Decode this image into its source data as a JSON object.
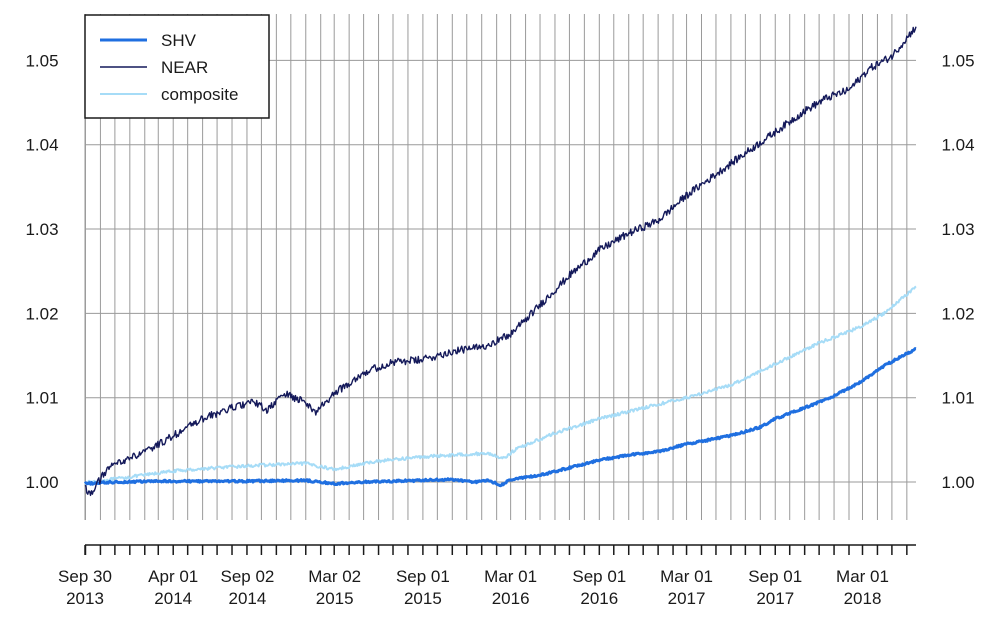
{
  "chart_data": {
    "type": "line",
    "title": "",
    "xlabel": "",
    "ylabel": "",
    "x_range": [
      "2013-09-30",
      "2018-06-20"
    ],
    "ylim": [
      0.9955,
      1.0555
    ],
    "y_ticks": [
      1.0,
      1.01,
      1.02,
      1.03,
      1.04,
      1.05
    ],
    "y_tick_labels": [
      "1.00",
      "1.01",
      "1.02",
      "1.03",
      "1.04",
      "1.05"
    ],
    "y_axis_sides": "both",
    "x_tick_labels": [
      {
        "date": "2013-09-30",
        "line1": "Sep 30",
        "line2": "2013"
      },
      {
        "date": "2014-04-01",
        "line1": "Apr 01",
        "line2": "2014"
      },
      {
        "date": "2014-09-02",
        "line1": "Sep 02",
        "line2": "2014"
      },
      {
        "date": "2015-03-02",
        "line1": "Mar 02",
        "line2": "2015"
      },
      {
        "date": "2015-09-01",
        "line1": "Sep 01",
        "line2": "2015"
      },
      {
        "date": "2016-03-01",
        "line1": "Mar 01",
        "line2": "2016"
      },
      {
        "date": "2016-09-01",
        "line1": "Sep 01",
        "line2": "2016"
      },
      {
        "date": "2017-03-01",
        "line1": "Mar 01",
        "line2": "2017"
      },
      {
        "date": "2017-09-01",
        "line1": "Sep 01",
        "line2": "2017"
      },
      {
        "date": "2018-03-01",
        "line1": "Mar 01",
        "line2": "2018"
      }
    ],
    "grid": true,
    "grid_vertical": "monthly",
    "legend": {
      "placement": "top-left",
      "entries": [
        {
          "name": "SHV",
          "color": "#1f6fe0"
        },
        {
          "name": "NEAR",
          "color": "#14195a"
        },
        {
          "name": "composite",
          "color": "#a6dcf7"
        }
      ]
    },
    "series": [
      {
        "name": "SHV",
        "color": "#1f6fe0",
        "line_width": 3,
        "points": [
          [
            "2013-09-30",
            0.9998
          ],
          [
            "2013-12-01",
            1.0
          ],
          [
            "2014-03-01",
            1.0001
          ],
          [
            "2014-06-01",
            1.0001
          ],
          [
            "2014-09-01",
            1.0001
          ],
          [
            "2015-01-01",
            1.0002
          ],
          [
            "2015-03-01",
            0.9998
          ],
          [
            "2015-05-01",
            1.0
          ],
          [
            "2015-09-01",
            1.0002
          ],
          [
            "2015-11-01",
            1.0003
          ],
          [
            "2015-12-15",
            1.0
          ],
          [
            "2016-01-15",
            1.0002
          ],
          [
            "2016-02-10",
            0.9996
          ],
          [
            "2016-03-01",
            1.0003
          ],
          [
            "2016-05-01",
            1.0008
          ],
          [
            "2016-07-01",
            1.0017
          ],
          [
            "2016-09-01",
            1.0026
          ],
          [
            "2016-11-01",
            1.0032
          ],
          [
            "2017-01-01",
            1.0036
          ],
          [
            "2017-03-01",
            1.0045
          ],
          [
            "2017-04-15",
            1.005
          ],
          [
            "2017-06-01",
            1.0055
          ],
          [
            "2017-08-01",
            1.0065
          ],
          [
            "2017-09-01",
            1.0075
          ],
          [
            "2017-11-01",
            1.0088
          ],
          [
            "2018-01-01",
            1.0102
          ],
          [
            "2018-03-01",
            1.012
          ],
          [
            "2018-04-15",
            1.0138
          ],
          [
            "2018-06-20",
            1.0158
          ]
        ]
      },
      {
        "name": "NEAR",
        "color": "#14195a",
        "line_width": 1.4,
        "points": [
          [
            "2013-09-30",
            0.9995
          ],
          [
            "2013-10-10",
            0.9985
          ],
          [
            "2013-11-15",
            1.0015
          ],
          [
            "2013-12-15",
            1.0025
          ],
          [
            "2014-02-01",
            1.0035
          ],
          [
            "2014-04-01",
            1.0055
          ],
          [
            "2014-06-01",
            1.0075
          ],
          [
            "2014-08-01",
            1.0088
          ],
          [
            "2014-09-15",
            1.0095
          ],
          [
            "2014-10-15",
            1.0085
          ],
          [
            "2014-11-15",
            1.0105
          ],
          [
            "2015-01-01",
            1.0095
          ],
          [
            "2015-01-20",
            1.0082
          ],
          [
            "2015-03-01",
            1.0105
          ],
          [
            "2015-05-01",
            1.013
          ],
          [
            "2015-07-01",
            1.0142
          ],
          [
            "2015-09-01",
            1.0145
          ],
          [
            "2015-11-01",
            1.0155
          ],
          [
            "2016-01-01",
            1.016
          ],
          [
            "2016-03-01",
            1.0175
          ],
          [
            "2016-05-01",
            1.021
          ],
          [
            "2016-07-01",
            1.0245
          ],
          [
            "2016-09-01",
            1.0275
          ],
          [
            "2016-11-01",
            1.0295
          ],
          [
            "2017-01-01",
            1.031
          ],
          [
            "2017-03-01",
            1.034
          ],
          [
            "2017-05-01",
            1.0365
          ],
          [
            "2017-07-01",
            1.039
          ],
          [
            "2017-09-01",
            1.0415
          ],
          [
            "2017-11-01",
            1.044
          ],
          [
            "2017-12-15",
            1.0455
          ],
          [
            "2018-02-01",
            1.0465
          ],
          [
            "2018-03-15",
            1.049
          ],
          [
            "2018-05-01",
            1.0505
          ],
          [
            "2018-06-20",
            1.054
          ]
        ]
      },
      {
        "name": "composite",
        "color": "#a6dcf7",
        "line_width": 2,
        "points": [
          [
            "2013-09-30",
            0.9999
          ],
          [
            "2014-01-01",
            1.0006
          ],
          [
            "2014-04-01",
            1.0013
          ],
          [
            "2014-07-01",
            1.0017
          ],
          [
            "2014-10-01",
            1.002
          ],
          [
            "2015-01-01",
            1.0022
          ],
          [
            "2015-03-01",
            1.0015
          ],
          [
            "2015-06-01",
            1.0025
          ],
          [
            "2015-09-01",
            1.003
          ],
          [
            "2015-12-01",
            1.0033
          ],
          [
            "2016-01-15",
            1.0034
          ],
          [
            "2016-02-15",
            1.0028
          ],
          [
            "2016-03-15",
            1.004
          ],
          [
            "2016-06-01",
            1.0058
          ],
          [
            "2016-09-01",
            1.0075
          ],
          [
            "2016-12-01",
            1.0088
          ],
          [
            "2017-03-01",
            1.01
          ],
          [
            "2017-06-01",
            1.0115
          ],
          [
            "2017-09-01",
            1.014
          ],
          [
            "2017-12-01",
            1.0165
          ],
          [
            "2018-03-01",
            1.0185
          ],
          [
            "2018-04-15",
            1.02
          ],
          [
            "2018-06-20",
            1.0232
          ]
        ]
      }
    ]
  }
}
